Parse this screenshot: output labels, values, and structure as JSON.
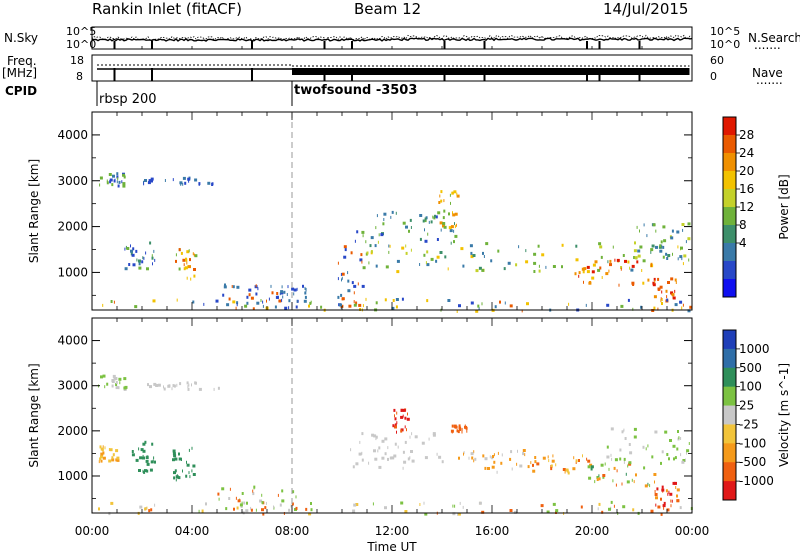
{
  "header": {
    "title": "Rankin Inlet (fitACF)",
    "beam": "Beam 12",
    "date": "14/Jul/2015"
  },
  "side_labels": {
    "nsky": "N.Sky",
    "nsearch": "N.Search",
    "freq": "Freq.",
    "mhz": "[MHz]",
    "nave": "Nave",
    "cpid": "CPID",
    "dots": "......."
  },
  "axis_labels": {
    "noise_left_ticks": [
      "10^5",
      "10^0"
    ],
    "noise_right_ticks": [
      "10^5",
      "10^0"
    ],
    "freq_ticks": [
      "18",
      "8"
    ],
    "nave_ticks": [
      "60",
      "0"
    ]
  },
  "cpid": {
    "modes": [
      "rbsp 200",
      "twofsound -3503"
    ],
    "switch_hour": 8
  },
  "chart_data": [
    {
      "type": "heatmap",
      "panel": "power",
      "ylabel": "Slant Range [km]",
      "xlabel": "",
      "yticks": [
        1000,
        2000,
        3000,
        4000
      ],
      "ylim": [
        180,
        4500
      ],
      "xlim": [
        0,
        24
      ],
      "colorbar_label": "Power [dB]",
      "colorbar_ticks": [
        "28",
        "24",
        "20",
        "16",
        "12",
        "8",
        "4"
      ],
      "colorbar_colors": [
        "#1010f0",
        "#2848c8",
        "#3a7aa8",
        "#3d8f6a",
        "#6fb23a",
        "#c4d12a",
        "#f2c200",
        "#f09000",
        "#ea5a00",
        "#e01800"
      ],
      "scatter_regions": [
        {
          "t0": 0.2,
          "t1": 1.3,
          "r0": 2900,
          "r1": 3200,
          "c": [
            "#2848c8",
            "#3a7aa8",
            "#6fb23a"
          ]
        },
        {
          "t0": 2.0,
          "t1": 5.1,
          "r0": 2950,
          "r1": 3100,
          "c": [
            "#2848c8",
            "#3a7aa8"
          ]
        },
        {
          "t0": 1.2,
          "t1": 2.6,
          "r0": 1100,
          "r1": 1700,
          "c": [
            "#2848c8",
            "#3a7aa8",
            "#6fb23a",
            "#3d8f6a"
          ]
        },
        {
          "t0": 3.3,
          "t1": 4.1,
          "r0": 850,
          "r1": 1550,
          "c": [
            "#ea5a00",
            "#f09000",
            "#f2c200",
            "#6fb23a"
          ]
        },
        {
          "t0": 5.2,
          "t1": 7.6,
          "r0": 250,
          "r1": 800,
          "c": [
            "#2848c8",
            "#3a7aa8",
            "#ea5a00"
          ]
        },
        {
          "t0": 7.5,
          "t1": 8.6,
          "r0": 400,
          "r1": 750,
          "c": [
            "#2848c8",
            "#3a7aa8"
          ]
        },
        {
          "t0": 9.8,
          "t1": 10.8,
          "r0": 250,
          "r1": 1600,
          "c": [
            "#2848c8",
            "#3a7aa8",
            "#ea5a00"
          ]
        },
        {
          "t0": 10.5,
          "t1": 14.5,
          "r0": 1700,
          "r1": 2400,
          "c": [
            "#2848c8",
            "#3a7aa8",
            "#3d8f6a",
            "#6fb23a"
          ]
        },
        {
          "t0": 13.8,
          "t1": 14.6,
          "r0": 2000,
          "r1": 2800,
          "c": [
            "#f09000",
            "#f2c200",
            "#6fb23a"
          ]
        },
        {
          "t0": 10.8,
          "t1": 23.8,
          "r0": 1050,
          "r1": 1700,
          "c": [
            "#3a7aa8",
            "#3d8f6a",
            "#6fb23a",
            "#c4d12a",
            "#f2c200"
          ]
        },
        {
          "t0": 19.3,
          "t1": 22.4,
          "r0": 750,
          "r1": 1300,
          "c": [
            "#ea5a00",
            "#f09000",
            "#e01800",
            "#f2c200"
          ]
        },
        {
          "t0": 22.4,
          "t1": 23.4,
          "r0": 400,
          "r1": 900,
          "c": [
            "#ea5a00",
            "#f09000",
            "#e01800"
          ]
        },
        {
          "t0": 21.5,
          "t1": 23.9,
          "r0": 1300,
          "r1": 2100,
          "c": [
            "#6fb23a",
            "#c4d12a",
            "#3a7aa8"
          ]
        },
        {
          "t0": 0.0,
          "t1": 24.0,
          "r0": 180,
          "r1": 450,
          "c": [
            "#2848c8",
            "#3a7aa8",
            "#6fb23a",
            "#ea5a00",
            "#f2c200"
          ]
        }
      ]
    },
    {
      "type": "heatmap",
      "panel": "velocity",
      "ylabel": "Slant Range [km]",
      "xlabel": "Time UT",
      "xticks": [
        "00:00",
        "04:00",
        "08:00",
        "12:00",
        "16:00",
        "20:00",
        "00:00"
      ],
      "yticks": [
        1000,
        2000,
        3000,
        4000
      ],
      "ylim": [
        180,
        4500
      ],
      "xlim": [
        0,
        24
      ],
      "colorbar_label": "Velocity [m s^-1]",
      "colorbar_ticks": [
        "1000",
        "500",
        "100",
        "25",
        "-25",
        "-100",
        "-500",
        "-1000"
      ],
      "colorbar_colors": [
        "#1f3fb8",
        "#2f6ea8",
        "#2f8f5a",
        "#7cc242",
        "#c8c8c8",
        "#f2c43a",
        "#f59a1a",
        "#f06010",
        "#e01818"
      ],
      "scatter_regions": [
        {
          "t0": 0.2,
          "t1": 1.3,
          "r0": 2950,
          "r1": 3250,
          "c": [
            "#c8c8c8",
            "#7cc242"
          ]
        },
        {
          "t0": 2.0,
          "t1": 5.1,
          "r0": 2950,
          "r1": 3100,
          "c": [
            "#c8c8c8"
          ]
        },
        {
          "t0": 1.5,
          "t1": 2.5,
          "r0": 1100,
          "r1": 1800,
          "c": [
            "#2f8f5a"
          ]
        },
        {
          "t0": 3.2,
          "t1": 4.1,
          "r0": 900,
          "r1": 1650,
          "c": [
            "#2f8f5a"
          ]
        },
        {
          "t0": 0.2,
          "t1": 1.0,
          "r0": 1300,
          "r1": 1700,
          "c": [
            "#f2c43a",
            "#f59a1a"
          ]
        },
        {
          "t0": 10.0,
          "t1": 14.0,
          "r0": 1200,
          "r1": 2000,
          "c": [
            "#c8c8c8"
          ]
        },
        {
          "t0": 12.0,
          "t1": 12.6,
          "r0": 2000,
          "r1": 2500,
          "c": [
            "#f06010",
            "#e01818"
          ]
        },
        {
          "t0": 14.3,
          "t1": 15.0,
          "r0": 2000,
          "r1": 2150,
          "c": [
            "#f06010"
          ]
        },
        {
          "t0": 14.5,
          "t1": 17.5,
          "r0": 1100,
          "r1": 1600,
          "c": [
            "#c8c8c8",
            "#f59a1a"
          ]
        },
        {
          "t0": 17.5,
          "t1": 20.0,
          "r0": 1100,
          "r1": 1500,
          "c": [
            "#f59a1a",
            "#f06010",
            "#f2c43a"
          ]
        },
        {
          "t0": 19.8,
          "t1": 22.5,
          "r0": 800,
          "r1": 1300,
          "c": [
            "#7cc242",
            "#2f8f5a",
            "#f59a1a",
            "#f06010"
          ]
        },
        {
          "t0": 22.5,
          "t1": 23.4,
          "r0": 300,
          "r1": 900,
          "c": [
            "#f06010",
            "#e01818",
            "#f59a1a"
          ]
        },
        {
          "t0": 20.5,
          "t1": 23.9,
          "r0": 1300,
          "r1": 2100,
          "c": [
            "#c8c8c8",
            "#7cc242"
          ]
        },
        {
          "t0": 5.0,
          "t1": 8.6,
          "r0": 250,
          "r1": 800,
          "c": [
            "#c8c8c8",
            "#f06010",
            "#7cc242"
          ]
        },
        {
          "t0": 0.0,
          "t1": 24.0,
          "r0": 180,
          "r1": 450,
          "c": [
            "#c8c8c8",
            "#7cc242",
            "#f2c43a",
            "#f06010"
          ]
        }
      ]
    }
  ]
}
